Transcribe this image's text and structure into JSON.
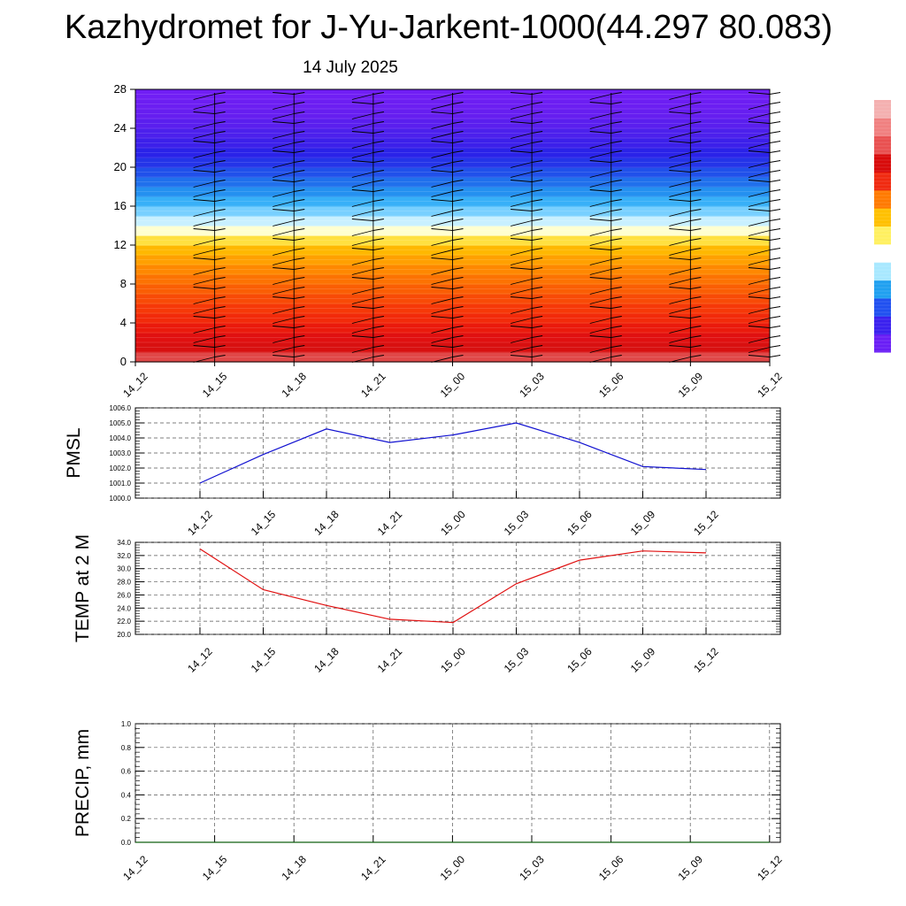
{
  "header": {
    "title": "Kazhydromet for J-Yu-Jarkent-1000(44.297 80.083)",
    "date": "14 July 2025"
  },
  "colors": {
    "pmsl_line": "#1010d0",
    "temp_line": "#e01010",
    "precip_line": "#106010",
    "barb": "#000000",
    "colorbar": [
      "#6a1ef5",
      "#3a20ee",
      "#2050f0",
      "#20a0f0",
      "#a8e8ff",
      "#ffffff",
      "#fff060",
      "#ffc000",
      "#ff7a00",
      "#f02a10",
      "#d80a0a",
      "#e85050",
      "#f08080",
      "#f4b0b0"
    ]
  },
  "chart_data": [
    {
      "type": "heatmap",
      "title": "",
      "xlabel": "",
      "ylabel": "",
      "categories": [
        "14_12",
        "14_15",
        "14_18",
        "14_21",
        "15_00",
        "15_03",
        "15_06",
        "15_09",
        "15_12"
      ],
      "xlim": [
        0,
        8
      ],
      "ylim": [
        0,
        28
      ],
      "yticks": [
        0,
        4,
        8,
        12,
        16,
        20,
        24,
        28
      ],
      "levels": [
        0,
        1,
        2,
        3,
        4,
        5,
        6,
        7,
        8,
        9,
        10,
        11,
        12,
        13,
        14,
        15,
        16,
        17,
        18,
        19,
        20,
        21,
        22,
        23,
        24,
        25,
        26,
        27,
        28
      ],
      "field_colors": [
        "#e04848",
        "#d81010",
        "#e01010",
        "#ea1a0c",
        "#f22a0a",
        "#f63808",
        "#f84a06",
        "#fa5e04",
        "#fc7202",
        "#fe8800",
        "#ffa000",
        "#ffb800",
        "#ffe040",
        "#ffffd0",
        "#c8f0ff",
        "#78d0ff",
        "#38b0f8",
        "#2490f0",
        "#2070ec",
        "#2050ea",
        "#2434e8",
        "#2a22e8",
        "#3c20ea",
        "#4c20ec",
        "#5a1eee",
        "#661ef0",
        "#6c1ef2",
        "#701ef4"
      ],
      "wind_barb_columns": [
        "14_15",
        "14_18",
        "14_21",
        "15_00",
        "15_03",
        "15_06",
        "15_09",
        "15_12"
      ],
      "grid": false,
      "legend": "right colorbar"
    },
    {
      "type": "line",
      "ylabel": "PMSL",
      "categories": [
        "14_12",
        "14_15",
        "14_18",
        "14_21",
        "15_00",
        "15_03",
        "15_06",
        "15_09",
        "15_12"
      ],
      "x": [
        0,
        1,
        2,
        3,
        4,
        5,
        6,
        7,
        8
      ],
      "values": [
        1001.0,
        1002.9,
        1004.6,
        1003.7,
        1004.2,
        1005.0,
        1003.7,
        1002.1,
        1001.9
      ],
      "ylim": [
        1000.0,
        1006.0
      ],
      "yticks": [
        "1000.0",
        "1001.0",
        "1002.0",
        "1003.0",
        "1004.0",
        "1005.0",
        "1006.0"
      ],
      "grid": true
    },
    {
      "type": "line",
      "ylabel": "TEMP at 2 M",
      "categories": [
        "14_12",
        "14_15",
        "14_18",
        "14_21",
        "15_00",
        "15_03",
        "15_06",
        "15_09",
        "15_12"
      ],
      "x": [
        0,
        1,
        2,
        3,
        4,
        5,
        6,
        7,
        8
      ],
      "values": [
        33.0,
        26.8,
        24.4,
        22.3,
        21.8,
        27.7,
        31.3,
        32.7,
        32.4
      ],
      "ylim": [
        20.0,
        34.0
      ],
      "yticks": [
        "20.0",
        "22.0",
        "24.0",
        "26.0",
        "28.0",
        "30.0",
        "32.0",
        "34.0"
      ],
      "grid": true
    },
    {
      "type": "line",
      "ylabel": "PRECIP, mm",
      "categories": [
        "14_12",
        "14_15",
        "14_18",
        "14_21",
        "15_00",
        "15_03",
        "15_06",
        "15_09",
        "15_12"
      ],
      "x": [
        0,
        8
      ],
      "values": [
        0.0,
        0.0
      ],
      "ylim": [
        0.0,
        1.0
      ],
      "yticks": [
        "0.0",
        "0.2",
        "0.4",
        "0.6",
        "0.8",
        "1.0"
      ],
      "grid": true
    }
  ]
}
